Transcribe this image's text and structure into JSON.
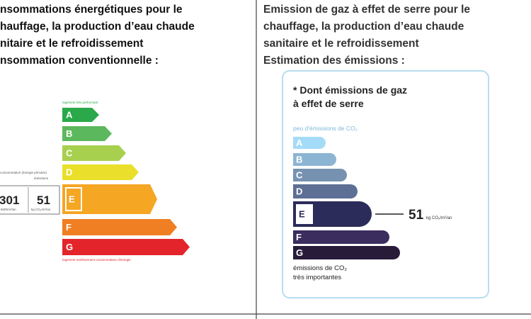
{
  "left": {
    "heading": [
      "nsommations énergétiques pour le",
      "hauffage, la production d’eau chaude",
      "nitaire et le refroidissement",
      "nsommation conventionnelle :"
    ],
    "label": {
      "top": "logement très performant",
      "bottom": "logement extrêmement consommateur d'énergie",
      "letters": [
        "A",
        "B",
        "C",
        "D",
        "E",
        "F",
        "G"
      ],
      "consumption_caption": "consommation (énergie primaire)",
      "emission_caption": "émissions",
      "consumption": 301,
      "consumption_unit": "kWh/m²/an",
      "emission": 51,
      "emission_unit": "kg CO₂/m²/an"
    }
  },
  "right": {
    "heading": [
      "Emission de gaz à effet de serre pour le",
      "chauffage, la production d’eau chaude",
      "sanitaire et le refroidissement",
      "Estimation des émissions :"
    ],
    "label": {
      "title": [
        "* Dont émissions de gaz",
        "à effet de serre"
      ],
      "top": "peu d'émissions de CO₂",
      "letters": [
        "A",
        "B",
        "C",
        "D",
        "E",
        "F",
        "G"
      ],
      "value": 51,
      "unit": "kg CO₂/m²/an",
      "bottom": [
        "émissions de CO₂",
        "très importantes"
      ]
    }
  }
}
